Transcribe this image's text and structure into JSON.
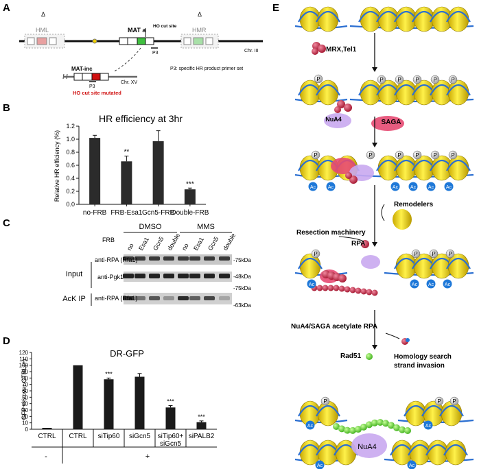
{
  "panels": {
    "A": "A",
    "B": "B",
    "C": "C",
    "D": "D",
    "E": "E"
  },
  "panelA": {
    "hml": "HML",
    "hmr": "HMR",
    "delta_left": "Δ",
    "delta_right": "Δ",
    "mat_a": "MAT a",
    "ho_cut": "HO cut site",
    "p3": "P3",
    "chr3": "Chr. III",
    "mat_inc": "MAT-inc",
    "chr15": "Chr. XV",
    "p3b": "P3",
    "ho_mutated": "HO cut site mutated",
    "primer_note": "P3: specific HR product primer set"
  },
  "panelB": {
    "chart_data": {
      "type": "bar",
      "title": "HR efficiency at 3hr",
      "ylabel": "Relative HR efficiency (%)",
      "xlabel": "",
      "ylim": [
        0,
        1.2
      ],
      "yticks": [
        "0.0",
        "0.2",
        "0.4",
        "0.6",
        "0.8",
        "1.0",
        "1.2"
      ],
      "categories": [
        "no-FRB",
        "FRB-Esa1",
        "Gcn5-FRB",
        "Double-FRB"
      ],
      "values": [
        1.02,
        0.66,
        0.97,
        0.23
      ],
      "errors": [
        0.04,
        0.08,
        0.16,
        0.02
      ],
      "significance": [
        "",
        "**",
        "",
        "***"
      ]
    }
  },
  "panelC": {
    "dmso": "DMSO",
    "mms": "MMS",
    "frb": "FRB",
    "lanes": [
      "no",
      "Esa1",
      "Gcn5",
      "double",
      "no",
      "Esa1",
      "Gcn5",
      "double"
    ],
    "input": "Input",
    "ack_ip": "AcK IP",
    "rows": [
      "anti-RPA (Rfa1)",
      "anti-Pgk1",
      "anti-RPA (Rfa1)"
    ],
    "markers": [
      "-75kDa",
      "-48kDa",
      "-75kDa",
      "-63kDa"
    ]
  },
  "panelD": {
    "chart_data": {
      "type": "bar",
      "title": "DR-GFP",
      "ylabel": "GFP+% over CTRL(+)",
      "xlabel": "",
      "ylim": [
        0,
        120
      ],
      "yticks": [
        "0",
        "10",
        "20",
        "30",
        "40",
        "50",
        "60",
        "70",
        "80",
        "90",
        "100",
        "110",
        "120"
      ],
      "categories": [
        "CTRL",
        "CTRL",
        "siTip60",
        "siGcn5",
        "siTip60+siGcn5",
        "siPALB2"
      ],
      "values": [
        0,
        100,
        78,
        82,
        34,
        11
      ],
      "errors": [
        0,
        0,
        2,
        5,
        3,
        2
      ],
      "significance": [
        "",
        "",
        "***",
        "",
        "***",
        "***"
      ]
    },
    "cat_line1": [
      "CTRL",
      "CTRL",
      "siTip60",
      "siGcn5",
      "siTip60+",
      "siPALB2"
    ],
    "cat_line2": [
      "",
      "",
      "",
      "",
      "siGcn5",
      ""
    ],
    "minus": "-",
    "plus": "+"
  },
  "panelE": {
    "mrx": "MRX,Tel1",
    "nua4": "NuA4",
    "saga": "SAGA",
    "remodelers": "Remodelers",
    "resection": "Resection machinery",
    "rpa": "RPA",
    "acetylate": "NuA4/SAGA acetylate RPA",
    "rad51": "Rad51",
    "homology": "Homology search",
    "strand": "strand invasion",
    "p": "P",
    "ac": "Ac",
    "nua4b": "NuA4"
  }
}
